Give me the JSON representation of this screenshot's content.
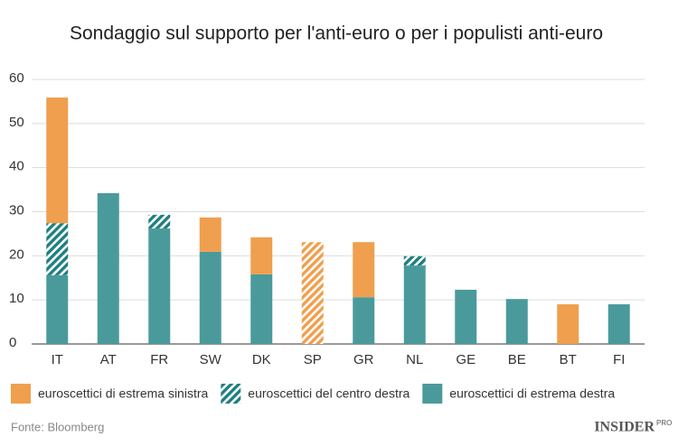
{
  "chart_data": {
    "type": "stacked-bar",
    "title": "Sondaggio sul supporto per l'anti-euro o per i populisti anti-euro",
    "categories": [
      "IT",
      "AT",
      "FR",
      "SW",
      "DK",
      "SP",
      "GR",
      "NL",
      "GE",
      "BE",
      "BT",
      "FI"
    ],
    "series": [
      {
        "name": "euroscettici di estrema sinistra",
        "color": "#ef9f4e",
        "pattern": "solid",
        "values": [
          28.5,
          null,
          null,
          7.8,
          8.4,
          null,
          12.5,
          null,
          null,
          null,
          9.0,
          null
        ]
      },
      {
        "name": "euroscettici del centro destra",
        "color": "#1f7f80",
        "pattern": "hatch",
        "values": [
          11.8,
          null,
          3.1,
          null,
          null,
          null,
          null,
          2.1,
          null,
          null,
          null,
          null
        ]
      },
      {
        "name": "euroscettici di estrema destra",
        "color": "#4a9a9b",
        "pattern": "solid",
        "values": [
          15.6,
          34.2,
          26.2,
          20.9,
          15.8,
          null,
          10.6,
          17.8,
          12.3,
          10.2,
          null,
          9.0
        ]
      },
      {
        "color": "#ef9f4e",
        "pattern": "hatch",
        "values": [
          null,
          null,
          null,
          null,
          null,
          23.1,
          null,
          null,
          null,
          null,
          null,
          null
        ]
      }
    ],
    "ylim": [
      0,
      60
    ],
    "yticks": [
      0,
      10,
      20,
      30,
      40,
      50,
      60
    ],
    "grid": true,
    "source": "Fonte: Bloomberg",
    "logo": "INSIDER",
    "logo_suffix": "PRO"
  }
}
